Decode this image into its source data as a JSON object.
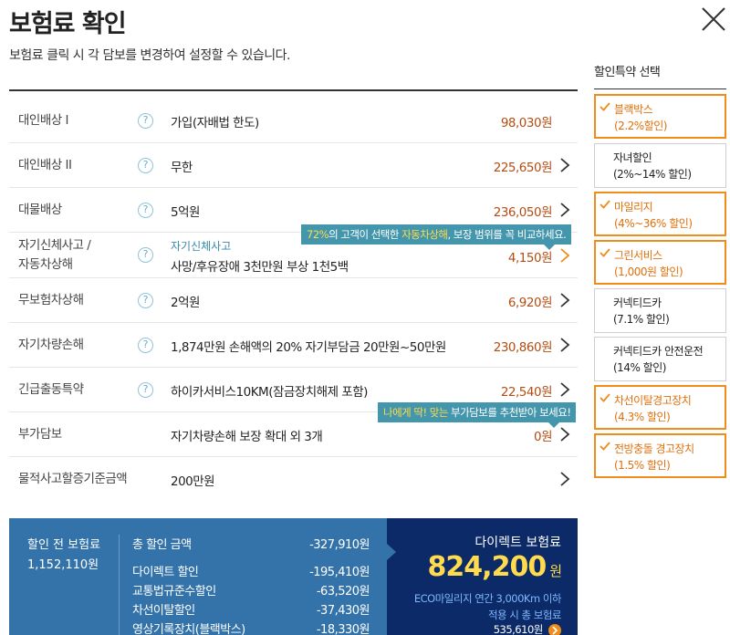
{
  "header": {
    "title": "보험료 확인",
    "subtitle": "보험료 클릭 시 각 담보를 변경하여 설정할 수 있습니다."
  },
  "rows": [
    {
      "label": "대인배상 Ⅰ",
      "value": "가입(자배법 한도)",
      "amount": "98,030원",
      "has_arrow": false
    },
    {
      "label": "대인배상 II",
      "value": "무한",
      "amount": "225,650원",
      "has_arrow": true
    },
    {
      "label": "대물배상",
      "value": "5억원",
      "amount": "236,050원",
      "has_arrow": true
    },
    {
      "label_line1": "자기신체사고 /",
      "label_line2": "자동차상해",
      "sub_value": "자기신체사고",
      "value": "사망/후유장애 3천만원 부상 1천5백",
      "amount": "4,150원",
      "has_arrow": true
    },
    {
      "label": "무보험차상해",
      "value": "2억원",
      "amount": "6,920원",
      "has_arrow": true
    },
    {
      "label": "자기차량손해",
      "value": "1,874만원 손해액의 20% 자기부담금 20만원~50만원",
      "amount": "230,860원",
      "has_arrow": true
    },
    {
      "label": "긴급출동특약",
      "value": "하이카서비스10KM(잠금장치해제 포함)",
      "amount": "22,540원",
      "has_arrow": true
    },
    {
      "label": "부가담보",
      "value": "자기차량손해 보장 확대 외 3개",
      "amount": "0원",
      "has_arrow": true
    },
    {
      "label": "물적사고할증기준금액",
      "value": "200만원",
      "amount": "",
      "has_arrow": true
    }
  ],
  "tooltips": {
    "tip1": {
      "hl1": "72%",
      "text1": "의 고객이 선택한 ",
      "hl2": "자동차상해",
      "text2": ", 보장 범위를 꼭 비교하세요."
    },
    "tip2": {
      "hl1": "나에게 딱! 맞는",
      "text1": " 부가담보를 추천받아 보세요!"
    }
  },
  "summary": {
    "pre_label": "할인 전 보험료",
    "pre_amount": "1,152,110원",
    "lines": [
      {
        "label": "총 할인 금액",
        "value": "-327,910원"
      },
      {
        "label": "다이렉트 할인",
        "value": "-195,410원"
      },
      {
        "label": "교통법규준수할인",
        "value": "-63,520원"
      },
      {
        "label": "차선이탈할인",
        "value": "-37,430원"
      },
      {
        "label": "영상기록장치(블랙박스)",
        "value": "-18,330원"
      }
    ],
    "direct_label": "다이렉트 보험료",
    "direct_amount": "824,200",
    "direct_unit": "원",
    "eco_line1": "ECO마일리지 연간 3,000Km 이하",
    "eco_line2": "적용 시 총 보험료",
    "eco_amount": "535,610원"
  },
  "side": {
    "title": "할인특약 선택",
    "options": [
      {
        "line1": "블랙박스",
        "line2": "(2.2%할인)",
        "selected": true
      },
      {
        "line1": "자녀할인",
        "line2": "(2%~14% 할인)",
        "selected": false
      },
      {
        "line1": "마일리지",
        "line2": "(4%~36% 할인)",
        "selected": true
      },
      {
        "line1": "그린서비스",
        "line2": "(1,000원 할인)",
        "selected": true
      },
      {
        "line1": "커넥티드카",
        "line2": "(7.1% 할인)",
        "selected": false
      },
      {
        "line1": "커넥티드카 안전운전",
        "line2": "(14% 할인)",
        "selected": false
      },
      {
        "line1": "차선이탈경고장치",
        "line2": "(4.3% 할인)",
        "selected": true
      },
      {
        "line1": "전방충돌 경고장치",
        "line2": "(1.5% 할인)",
        "selected": true
      }
    ]
  },
  "colors": {
    "accent_orange": "#f18c1a",
    "amount_red": "#b24d12",
    "tip_teal": "#4496ac",
    "summary_blue": "#3473aa",
    "summary_navy": "#0b2a67",
    "highlight_yellow": "#ffdb4d"
  }
}
